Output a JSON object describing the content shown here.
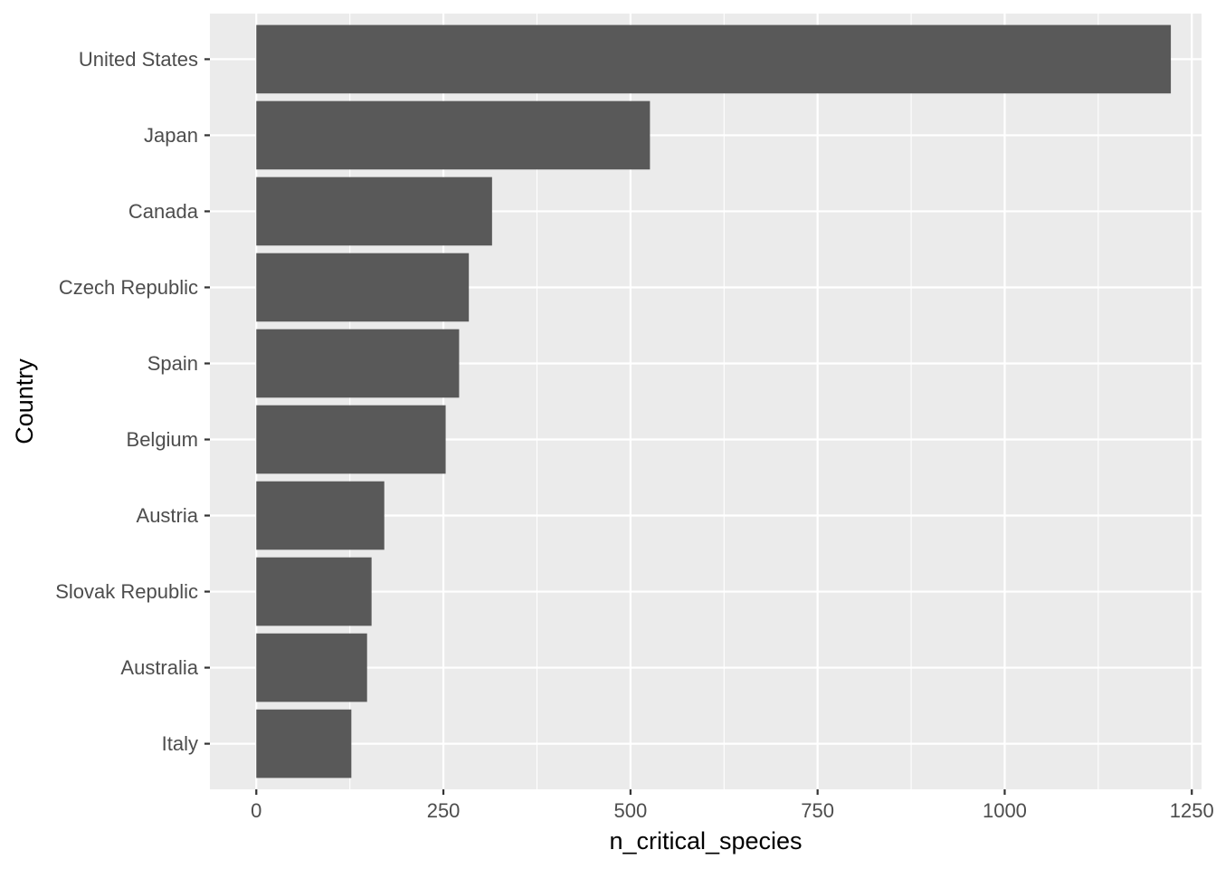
{
  "chart_data": {
    "type": "bar",
    "orientation": "horizontal",
    "categories": [
      "United States",
      "Japan",
      "Canada",
      "Czech Republic",
      "Spain",
      "Belgium",
      "Austria",
      "Slovak Republic",
      "Australia",
      "Italy"
    ],
    "values": [
      1222,
      526,
      315,
      284,
      271,
      253,
      171,
      154,
      148,
      127
    ],
    "xlabel": "n_critical_species",
    "ylabel": "Country",
    "xlim": [
      -62,
      1263
    ],
    "x_ticks": [
      0,
      250,
      500,
      750,
      1000,
      1250
    ],
    "x_tick_labels": [
      "0",
      "250",
      "500",
      "750",
      "1000",
      "1250"
    ],
    "x_minor_ticks": [
      125,
      375,
      625,
      875,
      1125
    ],
    "grid": true,
    "legend": "none",
    "colors": {
      "bar": "#595959",
      "panel_background": "#ebebeb",
      "grid": "#ffffff",
      "tick_text": "#4d4d4d",
      "tick_mark": "#333333",
      "title_text": "#000000"
    }
  }
}
